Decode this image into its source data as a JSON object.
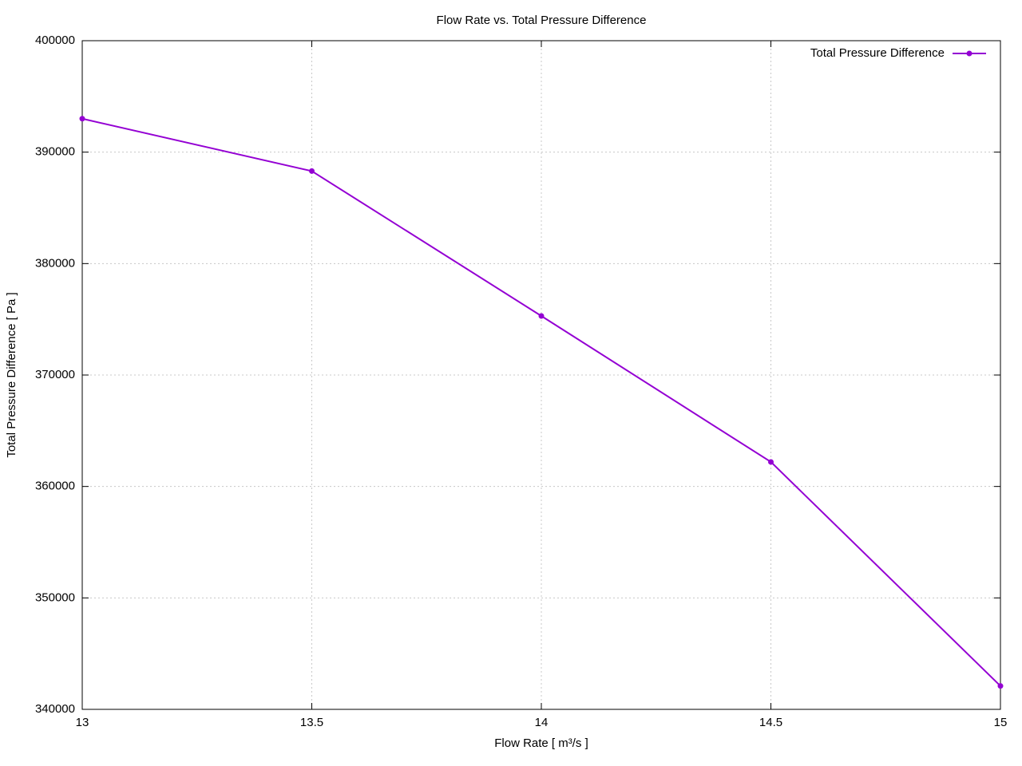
{
  "chart_data": {
    "type": "line",
    "title": "Flow Rate vs. Total Pressure Difference",
    "xlabel": "Flow Rate [ m³/s ]",
    "ylabel": "Total Pressure Difference [ Pa ]",
    "x": [
      13,
      13.5,
      14,
      14.5,
      15
    ],
    "series": [
      {
        "name": "Total Pressure Difference",
        "color": "#9400d3",
        "values": [
          393000,
          388300,
          375300,
          362200,
          342100
        ]
      }
    ],
    "xlim": [
      13,
      15
    ],
    "xticks": [
      13,
      13.5,
      14,
      14.5,
      15
    ],
    "ylim": [
      340000,
      400000
    ],
    "yticks": [
      340000,
      350000,
      360000,
      370000,
      380000,
      390000,
      400000
    ],
    "grid": true,
    "legend": "top-right"
  }
}
